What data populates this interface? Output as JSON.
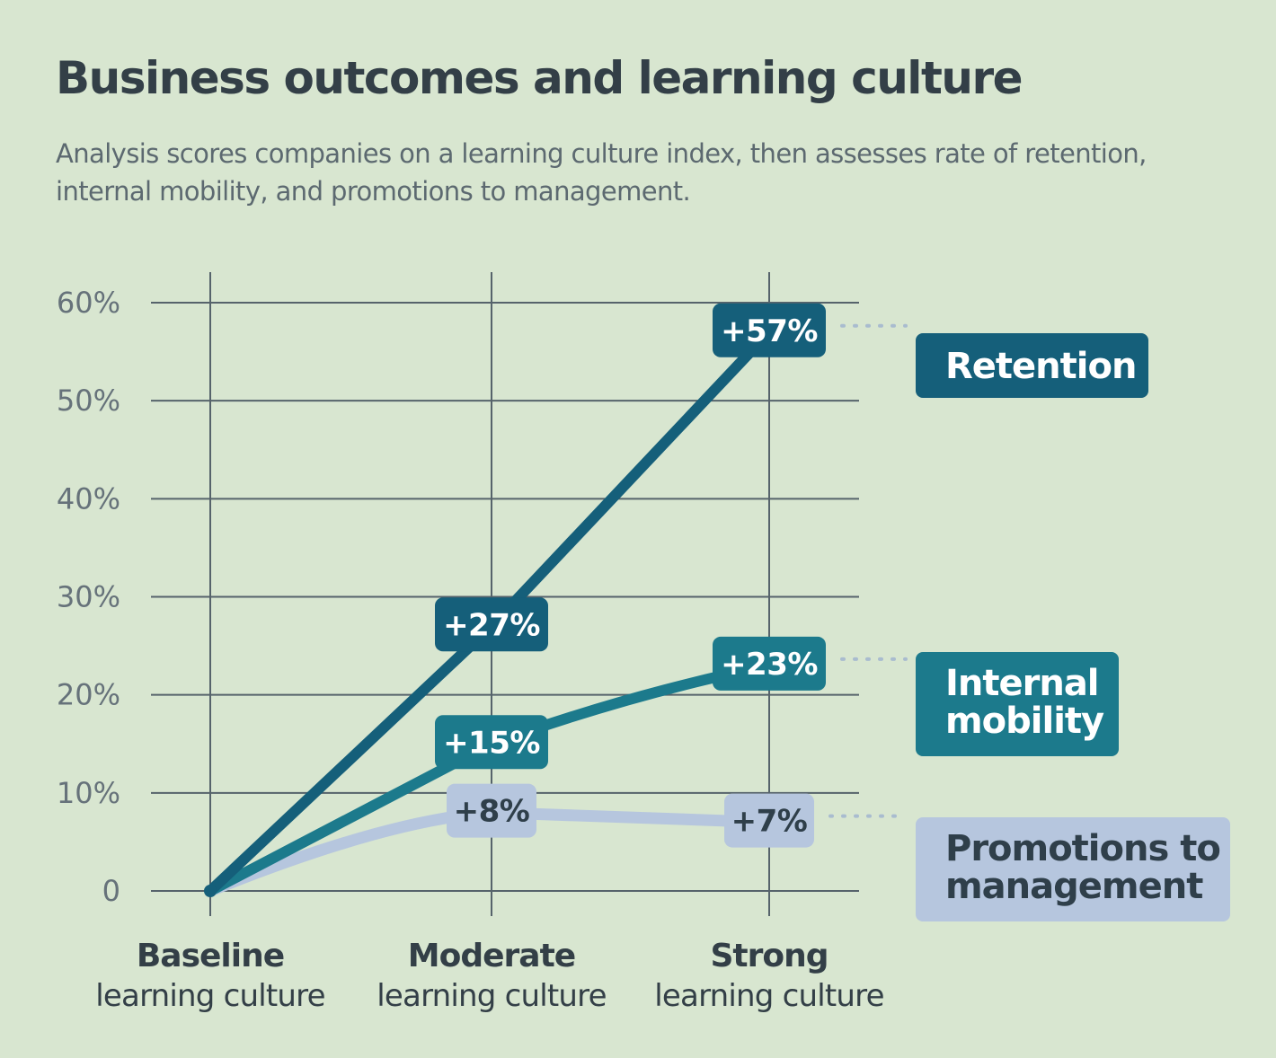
{
  "header": {
    "title": "Business outcomes and learning culture",
    "subtitle": "Analysis scores companies on a learning culture index, then assesses rate of retention, internal mobility, and promotions to management."
  },
  "chart_data": {
    "type": "line",
    "categories": [
      {
        "main": "Baseline",
        "sub": "learning culture"
      },
      {
        "main": "Moderate",
        "sub": "learning culture"
      },
      {
        "main": "Strong",
        "sub": "learning culture"
      }
    ],
    "y_ticks": [
      "0",
      "10%",
      "20%",
      "30%",
      "40%",
      "50%",
      "60%"
    ],
    "ylim": [
      0,
      60
    ],
    "grid": true,
    "series": [
      {
        "name_lines": [
          "Promotions to",
          "management"
        ],
        "values": [
          0,
          8,
          7
        ],
        "labels": [
          "",
          "+8%",
          "+7%"
        ],
        "color": "#b6c6de",
        "text_color": "#2f3f4a"
      },
      {
        "name_lines": [
          "Internal",
          "mobility"
        ],
        "values": [
          0,
          15,
          23
        ],
        "labels": [
          "",
          "+15%",
          "+23%"
        ],
        "color": "#1c7a8c",
        "text_color": "#ffffff"
      },
      {
        "name_lines": [
          "Retention"
        ],
        "values": [
          0,
          27,
          57
        ],
        "labels": [
          "",
          "+27%",
          "+57%"
        ],
        "color": "#155f7a",
        "text_color": "#ffffff"
      }
    ]
  }
}
